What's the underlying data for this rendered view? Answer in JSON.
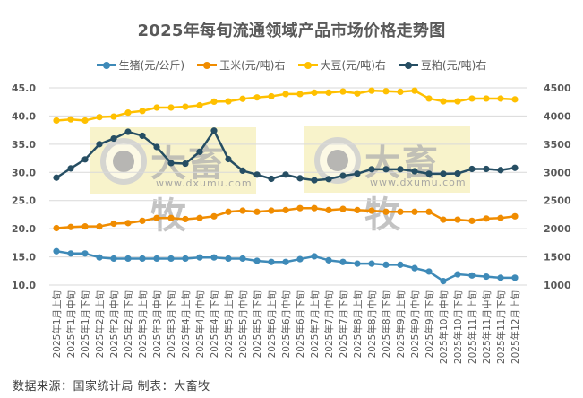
{
  "chart": {
    "title": "2025年每旬流通领域产品市场价格走势图",
    "footer": "数据来源：国家统计局  制表：大畜牧",
    "watermark": {
      "brand": "大畜牧",
      "url": "www.dxumu.com"
    }
  },
  "chart_data": {
    "type": "line",
    "title": "2025年每旬流通领域产品市场价格走势图",
    "xlabel": "",
    "ylabel_left": "",
    "ylabel_right": "",
    "ylim_left": [
      10.0,
      45.0
    ],
    "yticks_left": [
      "10.0",
      "15.0",
      "20.0",
      "25.0",
      "30.0",
      "35.0",
      "40.0",
      "45.0"
    ],
    "ylim_right": [
      1000,
      4500
    ],
    "yticks_right": [
      "1000",
      "1500",
      "2000",
      "2500",
      "3000",
      "3500",
      "4000",
      "4500"
    ],
    "grid": true,
    "legend_position": "top",
    "categories": [
      "2025年1月上旬",
      "2025年1月中旬",
      "2025年1月下旬",
      "2025年2月上旬",
      "2025年2月中旬",
      "2025年2月下旬",
      "2025年3月上旬",
      "2025年3月中旬",
      "2025年3月下旬",
      "2025年4月上旬",
      "2025年4月中旬",
      "2025年4月下旬",
      "2025年5月上旬",
      "2025年5月中旬",
      "2025年5月下旬",
      "2025年6月上旬",
      "2025年6月中旬",
      "2025年6月下旬",
      "2025年7月上旬",
      "2025年7月中旬",
      "2025年7月下旬",
      "2025年8月上旬",
      "2025年8月中旬",
      "2025年8月下旬",
      "2025年9月上旬",
      "2025年9月中旬",
      "2025年9月下旬",
      "2025年10月中旬",
      "2025年10月下旬",
      "2025年11月上旬",
      "2025年11月中旬",
      "2025年11月下旬",
      "2025年12月上旬"
    ],
    "series": [
      {
        "name": "生猪(元/公斤)",
        "axis": "left",
        "color": "#3E8AB8",
        "values": [
          16.0,
          15.6,
          15.6,
          14.9,
          14.7,
          14.7,
          14.7,
          14.7,
          14.7,
          14.7,
          14.9,
          14.9,
          14.7,
          14.7,
          14.3,
          14.1,
          14.1,
          14.6,
          15.1,
          14.4,
          14.1,
          13.8,
          13.8,
          13.6,
          13.6,
          13.0,
          12.4,
          10.7,
          11.9,
          11.7,
          11.5,
          11.3,
          11.3
        ]
      },
      {
        "name": "玉米(元/吨)右",
        "axis": "right",
        "color": "#F08C00",
        "values": [
          2010,
          2030,
          2040,
          2040,
          2090,
          2100,
          2140,
          2190,
          2190,
          2170,
          2190,
          2220,
          2300,
          2320,
          2300,
          2320,
          2330,
          2365,
          2365,
          2330,
          2350,
          2330,
          2320,
          2300,
          2300,
          2300,
          2300,
          2160,
          2160,
          2140,
          2180,
          2190,
          2220
        ]
      },
      {
        "name": "大豆(元/吨)右",
        "axis": "right",
        "color": "#FFC000",
        "values": [
          3920,
          3940,
          3920,
          3980,
          3990,
          4060,
          4090,
          4150,
          4150,
          4165,
          4190,
          4255,
          4260,
          4305,
          4330,
          4350,
          4390,
          4390,
          4415,
          4415,
          4435,
          4400,
          4450,
          4440,
          4430,
          4450,
          4310,
          4260,
          4260,
          4310,
          4310,
          4310,
          4295
        ]
      },
      {
        "name": "豆粕(元/吨)右",
        "axis": "right",
        "color": "#264E63",
        "values": [
          2905,
          3070,
          3230,
          3500,
          3600,
          3720,
          3650,
          3450,
          3165,
          3155,
          3365,
          3740,
          3235,
          3030,
          2960,
          2885,
          2960,
          2895,
          2860,
          2880,
          2940,
          2975,
          3055,
          3055,
          3055,
          3020,
          2975,
          2975,
          2980,
          3060,
          3060,
          3040,
          3080
        ]
      }
    ]
  }
}
